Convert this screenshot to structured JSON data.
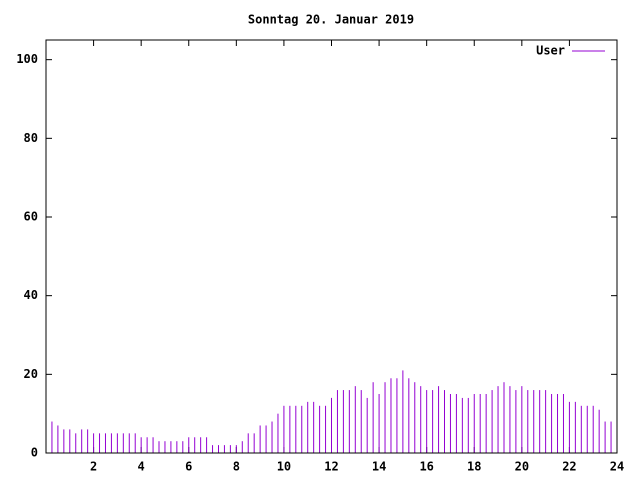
{
  "chart_data": {
    "type": "impulse",
    "title": "Sonntag 20. Januar 2019",
    "legend": "upper right",
    "series": [
      {
        "name": "User",
        "color": "#9400d3",
        "x": [
          0,
          0.25,
          0.5,
          0.75,
          1,
          1.25,
          1.5,
          1.75,
          2,
          2.25,
          2.5,
          2.75,
          3,
          3.25,
          3.5,
          3.75,
          4,
          4.25,
          4.5,
          4.75,
          5,
          5.25,
          5.5,
          5.75,
          6,
          6.25,
          6.5,
          6.75,
          7,
          7.25,
          7.5,
          7.75,
          8,
          8.25,
          8.5,
          8.75,
          9,
          9.25,
          9.5,
          9.75,
          10,
          10.25,
          10.5,
          10.75,
          11,
          11.25,
          11.5,
          11.75,
          12,
          12.25,
          12.5,
          12.75,
          13,
          13.25,
          13.5,
          13.75,
          14,
          14.25,
          14.5,
          14.75,
          15,
          15.25,
          15.5,
          15.75,
          16,
          16.25,
          16.5,
          16.75,
          17,
          17.25,
          17.5,
          17.75,
          18,
          18.25,
          18.5,
          18.75,
          19,
          19.25,
          19.5,
          19.75,
          20,
          20.25,
          20.5,
          20.75,
          21,
          21.25,
          21.5,
          21.75,
          22,
          22.25,
          22.5,
          22.75,
          23,
          23.25,
          23.5,
          23.75
        ],
        "values": [
          10,
          8,
          7,
          6,
          6,
          5,
          6,
          6,
          5,
          5,
          5,
          5,
          5,
          5,
          5,
          5,
          4,
          4,
          4,
          3,
          3,
          3,
          3,
          3,
          4,
          4,
          4,
          4,
          2,
          2,
          2,
          2,
          2,
          3,
          5,
          5,
          7,
          7,
          8,
          10,
          12,
          12,
          12,
          12,
          13,
          13,
          12,
          12,
          14,
          16,
          16,
          16,
          17,
          16,
          14,
          18,
          15,
          18,
          19,
          19,
          21,
          19,
          18,
          17,
          16,
          16,
          17,
          16,
          15,
          15,
          14,
          14,
          15,
          15,
          15,
          16,
          17,
          18,
          17,
          16,
          17,
          16,
          16,
          16,
          16,
          15,
          15,
          15,
          13,
          13,
          12,
          12,
          12,
          11,
          8,
          8
        ]
      }
    ],
    "xlim": [
      0,
      24
    ],
    "xticks": [
      2,
      4,
      6,
      8,
      10,
      12,
      14,
      16,
      18,
      20,
      22,
      24
    ],
    "ylim": [
      0,
      105
    ],
    "yticks": [
      0,
      20,
      40,
      60,
      80,
      100
    ]
  }
}
